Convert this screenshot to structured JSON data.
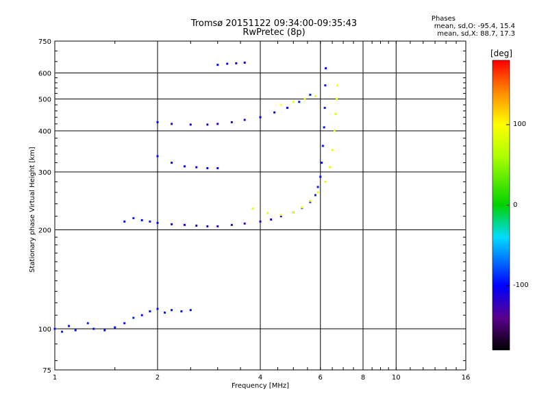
{
  "header": {
    "title_line1": "Tromsø 20151122 09:34:00-09:35:43",
    "title_line2": "RwPretec (8p)",
    "phases_heading": "Phases",
    "phases_o": "mean, sd,O: -95.4, 15.4",
    "phases_x": "mean, sd,X:  88.7, 17.3"
  },
  "colorbar": {
    "unit": "[deg]",
    "range": [
      -180,
      180
    ],
    "tick_labels": [
      "100",
      "0",
      "-100"
    ],
    "tick_values": [
      100,
      0,
      -100
    ]
  },
  "chart_data": {
    "type": "scatter",
    "xlabel": "Frequency [MHz]",
    "ylabel": "Stationary phase Virtual Height [km]",
    "x_scale": "log",
    "y_scale": "log",
    "xlim": [
      1,
      16
    ],
    "ylim": [
      75,
      750
    ],
    "x_ticks": [
      1,
      2,
      4,
      6,
      8,
      10,
      16
    ],
    "x_tick_labels": [
      "1",
      "2",
      "4",
      "6",
      "8",
      "10",
      "16"
    ],
    "x_major_gridlines": [
      2,
      4,
      6,
      8,
      10
    ],
    "y_ticks": [
      75,
      100,
      200,
      300,
      400,
      500,
      600,
      750
    ],
    "y_tick_labels": [
      "75",
      "100",
      "200",
      "300",
      "400",
      "500",
      "600",
      "750"
    ],
    "y_major_gridlines": [
      100,
      200,
      300,
      400,
      500,
      600
    ],
    "grid": true,
    "color_variable": "phase [deg]",
    "series": [
      {
        "points": [
          [
            1.0,
            100,
            -95
          ],
          [
            1.05,
            98,
            -92
          ],
          [
            1.1,
            102,
            -98
          ],
          [
            1.15,
            99,
            -95
          ],
          [
            1.25,
            104,
            -90
          ],
          [
            1.3,
            100,
            -96
          ],
          [
            1.4,
            99,
            -100
          ],
          [
            1.5,
            101,
            -93
          ],
          [
            1.6,
            104,
            -97
          ],
          [
            1.7,
            108,
            -92
          ],
          [
            1.8,
            110,
            -95
          ],
          [
            1.9,
            113,
            -98
          ],
          [
            2.0,
            115,
            -96
          ],
          [
            2.1,
            112,
            -94
          ],
          [
            2.2,
            114,
            -97
          ],
          [
            2.35,
            113,
            -95
          ],
          [
            2.5,
            114,
            -96
          ]
        ]
      },
      {
        "points": [
          [
            1.6,
            212,
            -95
          ],
          [
            1.7,
            217,
            -90
          ],
          [
            1.8,
            214,
            -97
          ],
          [
            1.9,
            212,
            -95
          ],
          [
            2.0,
            210,
            -100
          ],
          [
            2.2,
            208,
            -102
          ],
          [
            2.4,
            207,
            -108
          ],
          [
            2.6,
            206,
            -115
          ],
          [
            2.8,
            205,
            -120
          ],
          [
            3.0,
            205,
            -125
          ],
          [
            3.3,
            207,
            -128
          ],
          [
            3.6,
            209,
            -130
          ],
          [
            4.0,
            212,
            -125
          ],
          [
            4.3,
            215,
            -115
          ],
          [
            4.6,
            220,
            -105
          ],
          [
            5.0,
            226,
            -100
          ],
          [
            5.3,
            233,
            -97
          ],
          [
            5.6,
            243,
            -95
          ],
          [
            5.8,
            255,
            -93
          ],
          [
            5.9,
            270,
            -94
          ],
          [
            6.0,
            290,
            -95
          ],
          [
            6.05,
            320,
            -96
          ],
          [
            6.1,
            360,
            -95
          ],
          [
            6.15,
            410,
            -97
          ],
          [
            6.18,
            470,
            -94
          ],
          [
            6.2,
            550,
            -95
          ],
          [
            6.22,
            620,
            -96
          ]
        ]
      },
      {
        "points": [
          [
            2.0,
            425,
            -100
          ],
          [
            2.2,
            420,
            -105
          ],
          [
            2.5,
            418,
            -108
          ],
          [
            2.8,
            418,
            -115
          ],
          [
            3.0,
            420,
            -125
          ],
          [
            3.3,
            425,
            -120
          ],
          [
            3.6,
            432,
            -110
          ],
          [
            4.0,
            440,
            -105
          ],
          [
            4.4,
            455,
            -100
          ],
          [
            4.8,
            470,
            -98
          ],
          [
            5.2,
            490,
            -95
          ],
          [
            5.6,
            515,
            -92
          ]
        ]
      },
      {
        "points": [
          [
            2.0,
            335,
            -95
          ],
          [
            2.2,
            320,
            -100
          ],
          [
            2.4,
            312,
            -102
          ],
          [
            2.6,
            310,
            -105
          ],
          [
            2.8,
            308,
            -100
          ],
          [
            3.0,
            308,
            -98
          ]
        ]
      },
      {
        "points": [
          [
            3.0,
            635,
            -100
          ],
          [
            3.2,
            640,
            -105
          ],
          [
            3.4,
            642,
            -110
          ],
          [
            3.6,
            645,
            -112
          ]
        ]
      },
      {
        "points": [
          [
            3.8,
            232,
            95
          ],
          [
            4.2,
            225,
            92
          ],
          [
            4.6,
            222,
            98
          ],
          [
            5.0,
            226,
            90
          ],
          [
            5.3,
            234,
            93
          ],
          [
            5.6,
            245,
            88
          ],
          [
            5.9,
            260,
            95
          ],
          [
            6.2,
            280,
            92
          ],
          [
            6.4,
            310,
            90
          ],
          [
            6.5,
            350,
            94
          ],
          [
            6.6,
            400,
            92
          ],
          [
            6.65,
            450,
            90
          ],
          [
            6.7,
            500,
            93
          ],
          [
            6.72,
            550,
            100
          ]
        ]
      },
      {
        "points": [
          [
            4.6,
            480,
            100
          ],
          [
            5.0,
            490,
            95
          ],
          [
            5.4,
            500,
            92
          ],
          [
            5.8,
            510,
            98
          ]
        ]
      }
    ]
  }
}
